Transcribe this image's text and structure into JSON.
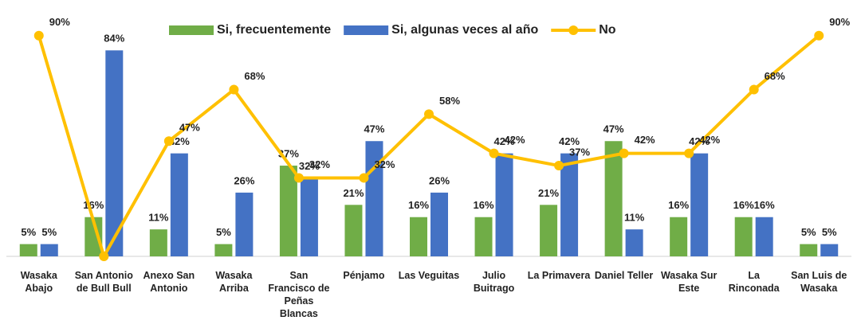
{
  "chart_data": {
    "type": "bar_line",
    "categories": [
      "Wasaka Abajo",
      "San Antonio de Bull Bull",
      "Anexo San Antonio",
      "Wasaka Arriba",
      "San Francisco de Peñas Blancas",
      "Pénjamo",
      "Las Veguitas",
      "Julio Buitrago",
      "La Primavera",
      "Daniel Teller",
      "Wasaka Sur Este",
      "La Rinconada",
      "San Luis de Wasaka"
    ],
    "series": [
      {
        "name": "Si, frecuentemente",
        "color": "#70ad47",
        "kind": "bar",
        "values": [
          5,
          16,
          11,
          5,
          37,
          21,
          16,
          16,
          21,
          47,
          16,
          16,
          5
        ],
        "value_labels": [
          "5%",
          "16%",
          "11%",
          "5%",
          "37%",
          "21%",
          "16%",
          "16%",
          "21%",
          "47%",
          "16%",
          "16%",
          "5%"
        ]
      },
      {
        "name": "Si, algunas veces al año",
        "color": "#4472c4",
        "kind": "bar",
        "values": [
          5,
          84,
          42,
          26,
          32,
          47,
          26,
          42,
          42,
          11,
          42,
          16,
          5
        ],
        "value_labels": [
          "5%",
          "84%",
          "42%",
          "26%",
          "32%",
          "47%",
          "26%",
          "42%",
          "42%",
          "11%",
          "42%",
          "16%",
          "5%"
        ]
      },
      {
        "name": "No",
        "color": "#ffc000",
        "kind": "line",
        "values": [
          90,
          0,
          47,
          68,
          32,
          32,
          58,
          42,
          37,
          42,
          42,
          68,
          90
        ],
        "value_labels": [
          "90%",
          null,
          "47%",
          "68%",
          "32%",
          "32%",
          "58%",
          "42%",
          "37%",
          "42%",
          "42%",
          "68%",
          "90%"
        ]
      }
    ],
    "ylim": [
      0,
      100
    ],
    "legend": "top"
  }
}
